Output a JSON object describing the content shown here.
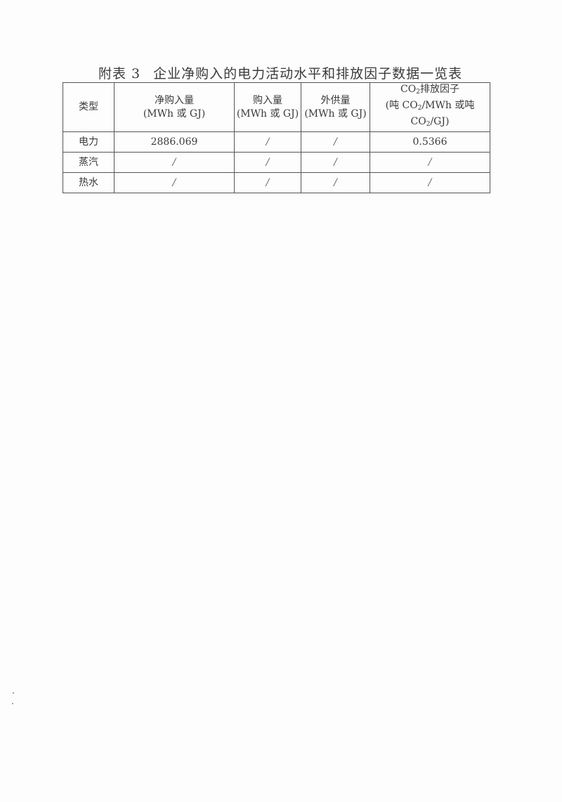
{
  "title": {
    "label": "附表 3",
    "text": "企业净购入的电力活动水平和排放因子数据一览表"
  },
  "table": {
    "headers": {
      "type": "类型",
      "net_purchase": {
        "line1": "净购入量",
        "line2": "(MWh 或 GJ)"
      },
      "purchase": {
        "line1": "购入量",
        "line2": "(MWh 或 GJ)"
      },
      "supply": {
        "line1": "外供量",
        "line2": "(MWh 或 GJ)"
      },
      "factor": {
        "co": "CO",
        "sub": "2",
        "line1_rest": "排放因子",
        "line2_a": "(吨 CO",
        "line2_b": "/MWh 或吨",
        "line3_a": "CO",
        "line3_b": "/GJ)"
      }
    },
    "rows": [
      {
        "type": "电力",
        "net_purchase": "2886.069",
        "purchase": "/",
        "supply": "/",
        "factor": "0.5366"
      },
      {
        "type": "蒸汽",
        "net_purchase": "/",
        "purchase": "/",
        "supply": "/",
        "factor": "/"
      },
      {
        "type": "热水",
        "net_purchase": "/",
        "purchase": "/",
        "supply": "/",
        "factor": "/"
      }
    ]
  }
}
